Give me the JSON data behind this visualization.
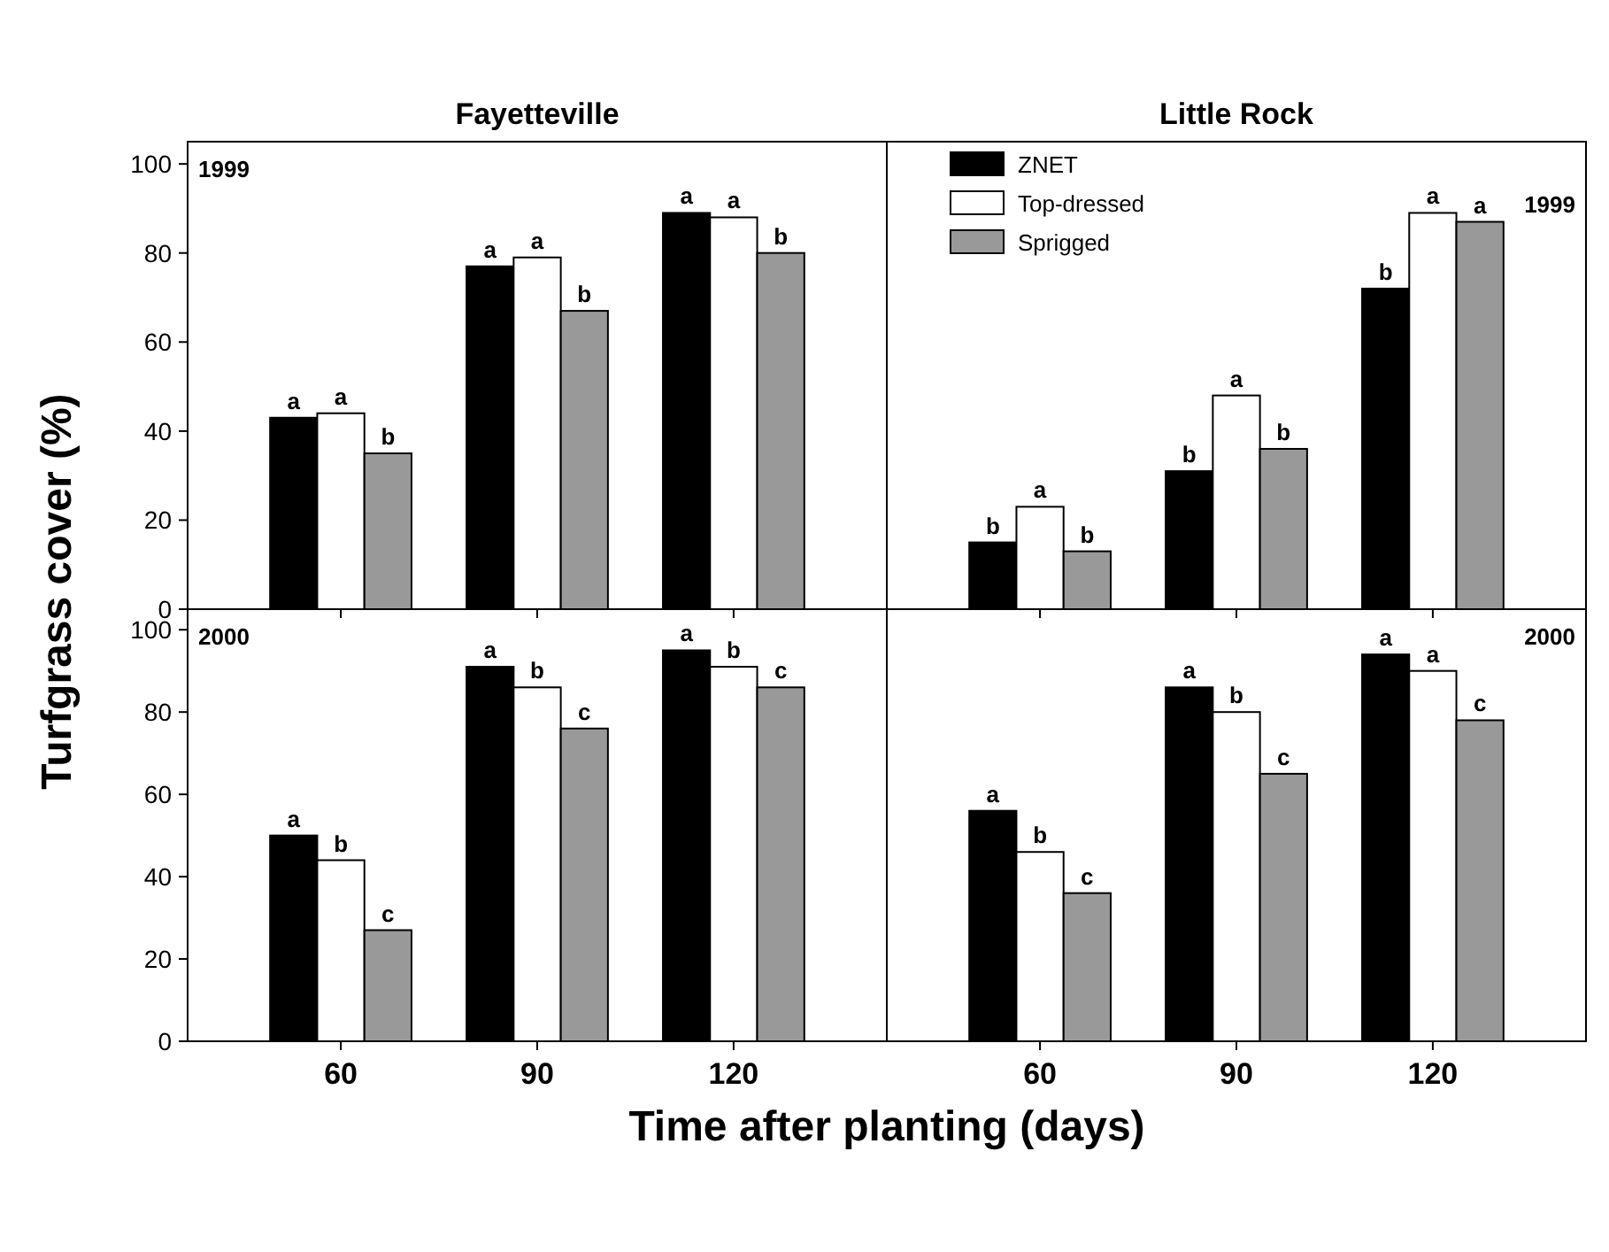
{
  "chart_data": [
    {
      "type": "bar",
      "title": "Fayetteville",
      "ylabel": "Turfgrass cover (%)",
      "categories": [
        "60",
        "90",
        "120"
      ],
      "ylim": [
        0,
        105
      ],
      "yticks": [
        0,
        20,
        40,
        60,
        80,
        100
      ],
      "tick_labels": "y",
      "annotations": [
        "1999"
      ],
      "series": [
        {
          "color": "#000000",
          "values": [
            43,
            77,
            89
          ],
          "value_labels": [
            "a",
            "a",
            "a"
          ]
        },
        {
          "color": "#ffffff",
          "values": [
            44,
            79,
            88
          ],
          "value_labels": [
            "a",
            "a",
            "a"
          ]
        },
        {
          "color": "#999999",
          "values": [
            35,
            67,
            80
          ],
          "value_labels": [
            "b",
            "b",
            "b"
          ]
        }
      ]
    },
    {
      "type": "bar",
      "title": "Little Rock",
      "categories": [
        "60",
        "90",
        "120"
      ],
      "ylim": [
        0,
        105
      ],
      "tick_labels": false,
      "legend": "top left",
      "annotations": [
        "1999"
      ],
      "series": [
        {
          "name": "ZNET",
          "color": "#000000",
          "values": [
            15,
            31,
            72
          ],
          "value_labels": [
            "b",
            "b",
            "b"
          ]
        },
        {
          "name": "Top-dressed",
          "color": "#ffffff",
          "values": [
            23,
            48,
            89
          ],
          "value_labels": [
            "a",
            "a",
            "a"
          ]
        },
        {
          "name": "Sprigged",
          "color": "#999999",
          "values": [
            13,
            36,
            87
          ],
          "value_labels": [
            "b",
            "b",
            "a"
          ]
        }
      ]
    },
    {
      "type": "bar",
      "xlabel": "Time after planting (days)",
      "categories": [
        "60",
        "90",
        "120"
      ],
      "ylim": [
        0,
        105
      ],
      "yticks": [
        0,
        20,
        40,
        60,
        80,
        100
      ],
      "annotations": [
        "2000"
      ],
      "series": [
        {
          "color": "#000000",
          "values": [
            50,
            91,
            95
          ],
          "value_labels": [
            "a",
            "a",
            "a"
          ]
        },
        {
          "color": "#ffffff",
          "values": [
            44,
            86,
            91
          ],
          "value_labels": [
            "b",
            "b",
            "b"
          ]
        },
        {
          "color": "#999999",
          "values": [
            27,
            76,
            86
          ],
          "value_labels": [
            "c",
            "c",
            "c"
          ]
        }
      ]
    },
    {
      "type": "bar",
      "categories": [
        "60",
        "90",
        "120"
      ],
      "ylim": [
        0,
        105
      ],
      "tick_labels": "x",
      "annotations": [
        "2000"
      ],
      "series": [
        {
          "color": "#000000",
          "values": [
            56,
            86,
            94
          ],
          "value_labels": [
            "a",
            "a",
            "a"
          ]
        },
        {
          "color": "#ffffff",
          "values": [
            46,
            80,
            90
          ],
          "value_labels": [
            "b",
            "b",
            "a"
          ]
        },
        {
          "color": "#999999",
          "values": [
            36,
            65,
            78
          ],
          "value_labels": [
            "c",
            "c",
            "c"
          ]
        }
      ]
    }
  ]
}
